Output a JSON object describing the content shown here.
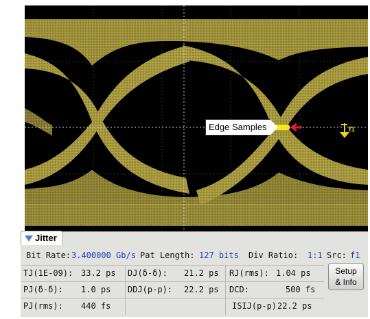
{
  "display": {
    "callout_label": "Edge Samples",
    "marker_label": "f1",
    "colors": {
      "trace": "#a89a3e",
      "background": "#000000",
      "edge_samples": "#f4e81a",
      "arrows": "#e0202a",
      "marker": "#e8d21a"
    }
  },
  "jitter_panel": {
    "tab_label": "Jitter",
    "bit_rate_label": "Bit Rate:",
    "bit_rate_value": "3.400000 Gb/s",
    "pat_length_label": "Pat Length:",
    "pat_length_value": "127 bits",
    "div_ratio_label": "Div Ratio:",
    "div_ratio_value": "1:1",
    "src_label": "Src:",
    "src_value": "f1",
    "rows": [
      [
        {
          "label": "TJ(1E-09):",
          "value": "33.2 ps"
        },
        {
          "label": "DJ(δ-δ):",
          "value": "21.2 ps"
        },
        {
          "label": "RJ(rms):",
          "value": "1.04 ps"
        }
      ],
      [
        {
          "label": "PJ(δ-δ):",
          "value": "1.0 ps"
        },
        {
          "label": "DDJ(p-p):",
          "value": "22.2 ps"
        },
        {
          "label": "DCD:",
          "value": "500 fs"
        }
      ],
      [
        {
          "label": "PJ(rms):",
          "value": "440 fs"
        },
        {
          "label": "",
          "value": ""
        },
        {
          "label": "ISIJ(p-p)",
          "value": "22.2 ps"
        }
      ]
    ],
    "setup_button": {
      "line1": "Setup",
      "line2": "& Info"
    }
  }
}
